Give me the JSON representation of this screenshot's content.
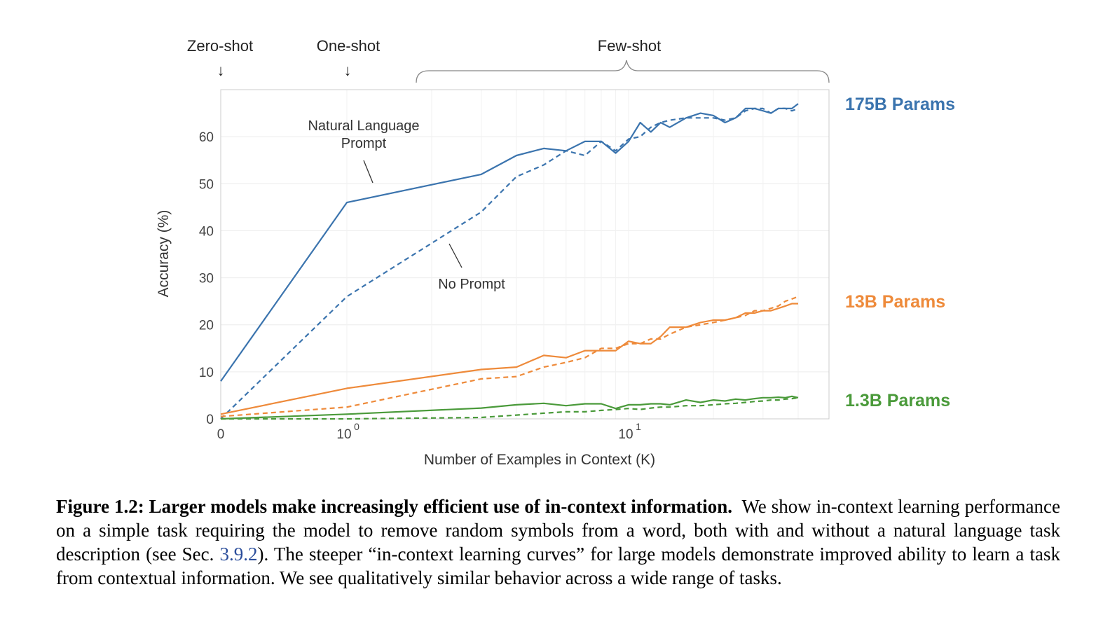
{
  "chart_data": {
    "type": "line",
    "xlabel": "Number of Examples in Context  (K)",
    "ylabel": "Accuracy (%)",
    "x_scale": "symlog",
    "xlim": [
      0,
      40
    ],
    "ylim": [
      0,
      70
    ],
    "y_ticks": [
      0,
      10,
      20,
      30,
      40,
      50,
      60
    ],
    "x_ticks": [
      {
        "value": 0,
        "label": "0",
        "exp": ""
      },
      {
        "value": 1,
        "label": "10",
        "exp": "0"
      },
      {
        "value": 10,
        "label": "10",
        "exp": "1"
      }
    ],
    "grid": true,
    "annotations": {
      "zero_shot": "Zero-shot",
      "one_shot": "One-shot",
      "few_shot": "Few-shot",
      "natural_language_prompt_line1": "Natural Language",
      "natural_language_prompt_line2": "Prompt",
      "no_prompt": "No Prompt"
    },
    "series": [
      {
        "model": "175B Params",
        "prompt": "natural",
        "color": "#3b74ae",
        "dash": "solid",
        "x": [
          0,
          1,
          3,
          4,
          5,
          6,
          7,
          8,
          9,
          10,
          11,
          12,
          13,
          14,
          16,
          18,
          20,
          22,
          24,
          26,
          28,
          30,
          32,
          34,
          36,
          38,
          40
        ],
        "y": [
          8,
          46,
          52,
          56,
          57.5,
          57,
          59,
          59,
          56.5,
          59,
          63,
          61,
          63,
          62,
          64,
          65,
          64.5,
          63,
          64,
          66,
          66,
          65.5,
          65,
          66,
          66,
          66,
          67
        ]
      },
      {
        "model": "175B Params",
        "prompt": "none",
        "color": "#3b74ae",
        "dash": "dashed",
        "x": [
          0,
          1,
          3,
          4,
          5,
          6,
          7,
          8,
          9,
          10,
          11,
          12,
          13,
          14,
          16,
          18,
          20,
          22,
          24,
          26,
          28,
          30,
          32,
          34,
          36,
          38,
          40
        ],
        "y": [
          0,
          26,
          44,
          51.5,
          54,
          57,
          56,
          59,
          57,
          59.5,
          60,
          62,
          63,
          63.5,
          64,
          64,
          64,
          63.5,
          64,
          65.5,
          66,
          66,
          65,
          66,
          66,
          65.5,
          66
        ]
      },
      {
        "model": "13B Params",
        "prompt": "natural",
        "color": "#ee8a3a",
        "dash": "solid",
        "x": [
          0,
          1,
          3,
          4,
          5,
          6,
          7,
          8,
          9,
          10,
          11,
          12,
          13,
          14,
          16,
          18,
          20,
          22,
          24,
          26,
          28,
          30,
          32,
          34,
          36,
          38,
          40
        ],
        "y": [
          1,
          6.5,
          10.5,
          11,
          13.5,
          13,
          14.5,
          14.5,
          14.5,
          16.5,
          16,
          16,
          17.5,
          19.5,
          19.5,
          20.5,
          21,
          21,
          21.5,
          22.5,
          22.5,
          23,
          23,
          23.5,
          24,
          24.5,
          24.5
        ]
      },
      {
        "model": "13B Params",
        "prompt": "none",
        "color": "#ee8a3a",
        "dash": "dashed",
        "x": [
          0,
          1,
          3,
          4,
          5,
          6,
          7,
          8,
          9,
          10,
          11,
          12,
          13,
          14,
          16,
          18,
          20,
          22,
          24,
          26,
          28,
          30,
          32,
          34,
          36,
          38,
          40
        ],
        "y": [
          0.5,
          2.5,
          8.5,
          9,
          11,
          12,
          13,
          15,
          15,
          16,
          16,
          17,
          17,
          18,
          19.5,
          20,
          20.5,
          21,
          21.5,
          22,
          23,
          23,
          23.5,
          24,
          25,
          25.5,
          26
        ]
      },
      {
        "model": "1.3B Params",
        "prompt": "natural",
        "color": "#4a9a3a",
        "dash": "solid",
        "x": [
          0,
          1,
          3,
          4,
          5,
          6,
          7,
          8,
          9,
          10,
          11,
          12,
          13,
          14,
          16,
          18,
          20,
          22,
          24,
          26,
          28,
          30,
          32,
          34,
          36,
          38,
          40
        ],
        "y": [
          0,
          1,
          2.3,
          3,
          3.3,
          2.8,
          3.2,
          3.2,
          2.2,
          3,
          3,
          3.2,
          3.2,
          3,
          4,
          3.5,
          4,
          3.8,
          4.2,
          4,
          4.3,
          4.5,
          4.5,
          4.6,
          4.5,
          4.8,
          4.5
        ]
      },
      {
        "model": "1.3B Params",
        "prompt": "none",
        "color": "#4a9a3a",
        "dash": "dashed",
        "x": [
          0,
          1,
          3,
          4,
          5,
          6,
          7,
          8,
          9,
          10,
          11,
          12,
          13,
          14,
          16,
          18,
          20,
          22,
          24,
          26,
          28,
          30,
          32,
          34,
          36,
          38,
          40
        ],
        "y": [
          0,
          0,
          0.3,
          0.8,
          1.2,
          1.5,
          1.5,
          1.8,
          2,
          2.2,
          2,
          2.3,
          2.5,
          2.5,
          2.8,
          2.8,
          3,
          3.2,
          3.3,
          3.5,
          3.7,
          3.8,
          4,
          4,
          4.2,
          4.3,
          4.5
        ]
      }
    ],
    "series_labels": [
      {
        "text": "175B Params",
        "color": "#3b74ae",
        "y": 67
      },
      {
        "text": "13B Params",
        "color": "#ee8a3a",
        "y": 25
      },
      {
        "text": "1.3B Params",
        "color": "#4a9a3a",
        "y": 4
      }
    ]
  },
  "caption": {
    "bold": "Figure 1.2: Larger models make increasingly efficient use of in-context information.",
    "text1": "We show in-context learning performance on a simple task requiring the model to remove random symbols from a word, both with and without a natural language task description (see Sec.",
    "ref": "3.9.2",
    "text2": "). The steeper “in-context learning curves” for large models demonstrate improved ability to learn a task from contextual information. We see qualitatively similar behavior across a wide range of tasks."
  }
}
